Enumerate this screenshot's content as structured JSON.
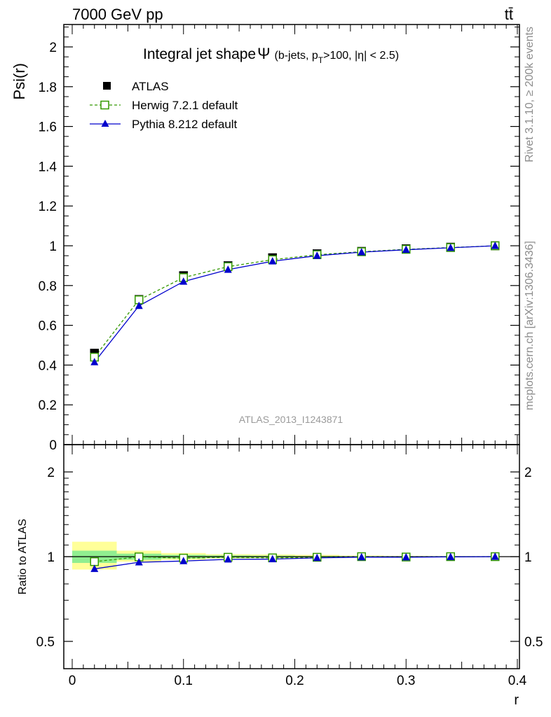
{
  "header": {
    "energy_label": "7000 GeV pp",
    "process_label": "tt̄",
    "rivet_label": "Rivet 3.1.10, ≥ 200k events",
    "mcplots_label": "mcplots.cern.ch [arXiv:1306.3436]"
  },
  "colors": {
    "atlas": "#000000",
    "herwig": "#339900",
    "pythia": "#0000cc",
    "band_inner": "#90ee90",
    "band_outer": "#ffff99"
  },
  "chart_data": [
    {
      "type": "line",
      "title_main": "Integral jet shape",
      "title_symbol": "Ψ",
      "title_detail": "(b-jets, p",
      "title_sub": "T",
      "title_detail_end": ">100, |η| < 2.5)",
      "ylabel": "Psi(r)",
      "xlabel": "r",
      "xlim": [
        0,
        0.4
      ],
      "ylim": [
        0,
        2.12
      ],
      "ytick_values": [
        0,
        0.2,
        0.4,
        0.6,
        0.8,
        1,
        1.2,
        1.4,
        1.6,
        1.8,
        2
      ],
      "ytick_labels": [
        "0",
        "0.2",
        "0.4",
        "0.6",
        "0.8",
        "1",
        "1.2",
        "1.4",
        "1.6",
        "1.8",
        "2"
      ],
      "watermark": "ATLAS_2013_I1243871",
      "x": [
        0.02,
        0.06,
        0.1,
        0.14,
        0.18,
        0.22,
        0.26,
        0.3,
        0.34,
        0.38
      ],
      "series": [
        {
          "name": "ATLAS",
          "marker": "square-filled",
          "values": [
            0.46,
            0.73,
            0.85,
            0.9,
            0.94,
            0.96,
            0.972,
            0.985,
            0.993,
            1.0
          ]
        },
        {
          "name": "Herwig 7.2.1 default",
          "marker": "square-open",
          "line": "dashed",
          "values": [
            0.44,
            0.728,
            0.84,
            0.895,
            0.93,
            0.955,
            0.97,
            0.982,
            0.991,
            1.0
          ]
        },
        {
          "name": "Pythia 8.212 default",
          "marker": "triangle-filled",
          "line": "solid",
          "values": [
            0.415,
            0.698,
            0.82,
            0.88,
            0.922,
            0.95,
            0.968,
            0.98,
            0.99,
            1.0
          ]
        }
      ],
      "legend": [
        "ATLAS",
        "Herwig 7.2.1 default",
        "Pythia 8.212 default"
      ],
      "legend_position": "top-left"
    },
    {
      "type": "line",
      "ylabel": "Ratio to ATLAS",
      "xlabel": "r",
      "xlim": [
        0,
        0.4
      ],
      "ylim": [
        0.4,
        2.3
      ],
      "ytick_values": [
        0.5,
        1,
        2
      ],
      "ytick_labels": [
        "0.5",
        "1",
        "2"
      ],
      "xtick_values": [
        0,
        0.1,
        0.2,
        0.3,
        0.4
      ],
      "xtick_labels": [
        "0",
        "0.1",
        "0.2",
        "0.3",
        "0.4"
      ],
      "x": [
        0.02,
        0.06,
        0.1,
        0.14,
        0.18,
        0.22,
        0.26,
        0.3,
        0.34,
        0.38
      ],
      "bands": [
        {
          "x0": 0.0,
          "x1": 0.04,
          "inner": [
            0.95,
            1.05
          ],
          "outer": [
            0.9,
            1.13
          ]
        },
        {
          "x0": 0.04,
          "x1": 0.08,
          "inner": [
            0.975,
            1.025
          ],
          "outer": [
            0.96,
            1.05
          ]
        },
        {
          "x0": 0.08,
          "x1": 0.12,
          "inner": [
            0.985,
            1.015
          ],
          "outer": [
            0.975,
            1.03
          ]
        },
        {
          "x0": 0.12,
          "x1": 0.16,
          "inner": [
            0.99,
            1.01
          ],
          "outer": [
            0.985,
            1.02
          ]
        },
        {
          "x0": 0.16,
          "x1": 0.2,
          "inner": [
            0.992,
            1.008
          ],
          "outer": [
            0.988,
            1.018
          ]
        },
        {
          "x0": 0.2,
          "x1": 0.24,
          "inner": [
            0.995,
            1.005
          ],
          "outer": [
            0.99,
            1.015
          ]
        },
        {
          "x0": 0.24,
          "x1": 0.28,
          "inner": [
            0.997,
            1.003
          ],
          "outer": [
            0.994,
            1.008
          ]
        },
        {
          "x0": 0.28,
          "x1": 0.32,
          "inner": [
            0.998,
            1.002
          ],
          "outer": [
            0.996,
            1.005
          ]
        },
        {
          "x0": 0.32,
          "x1": 0.36,
          "inner": [
            0.999,
            1.001
          ],
          "outer": [
            0.998,
            1.003
          ]
        },
        {
          "x0": 0.36,
          "x1": 0.4,
          "inner": [
            0.9995,
            1.0005
          ],
          "outer": [
            0.999,
            1.001
          ]
        }
      ],
      "series": [
        {
          "name": "Herwig 7.2.1 default",
          "values": [
            0.96,
            0.998,
            0.988,
            0.995,
            0.99,
            0.995,
            1.0,
            0.997,
            1.0,
            1.0
          ]
        },
        {
          "name": "Pythia 8.212 default",
          "values": [
            0.905,
            0.955,
            0.965,
            0.978,
            0.98,
            0.99,
            0.996,
            0.995,
            0.998,
            1.0
          ]
        }
      ]
    }
  ]
}
